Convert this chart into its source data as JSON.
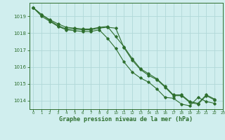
{
  "background_color": "#d0eeee",
  "grid_color": "#b0d8d8",
  "line_color": "#2d6e2d",
  "text_color": "#2d6e2d",
  "xlabel": "Graphe pression niveau de la mer (hPa)",
  "xlim": [
    -0.5,
    23
  ],
  "ylim": [
    1013.5,
    1019.8
  ],
  "yticks": [
    1014,
    1015,
    1016,
    1017,
    1018,
    1019
  ],
  "xticks": [
    0,
    1,
    2,
    3,
    4,
    5,
    6,
    7,
    8,
    9,
    10,
    11,
    12,
    13,
    14,
    15,
    16,
    17,
    18,
    19,
    20,
    21,
    22,
    23
  ],
  "line1": [
    1019.5,
    1019.1,
    1018.8,
    1018.55,
    1018.35,
    1018.3,
    1018.25,
    1018.25,
    1018.35,
    1018.4,
    1017.8,
    1017.2,
    1016.5,
    1015.9,
    1015.6,
    1015.3,
    1014.85,
    1014.35,
    1014.35,
    1013.95,
    1013.85,
    1014.35,
    1014.1
  ],
  "line2": [
    1019.5,
    1019.1,
    1018.75,
    1018.45,
    1018.25,
    1018.25,
    1018.2,
    1018.2,
    1018.3,
    1018.35,
    1018.3,
    1017.15,
    1016.4,
    1015.85,
    1015.5,
    1015.25,
    1014.8,
    1014.3,
    1014.3,
    1013.9,
    1013.8,
    1014.3,
    1014.05
  ],
  "line3": [
    1019.5,
    1019.0,
    1018.7,
    1018.4,
    1018.2,
    1018.15,
    1018.1,
    1018.1,
    1018.2,
    1017.7,
    1017.1,
    1016.3,
    1015.7,
    1015.35,
    1015.1,
    1014.7,
    1014.2,
    1014.15,
    1013.8,
    1013.7,
    1014.2,
    1013.95,
    1013.85
  ]
}
